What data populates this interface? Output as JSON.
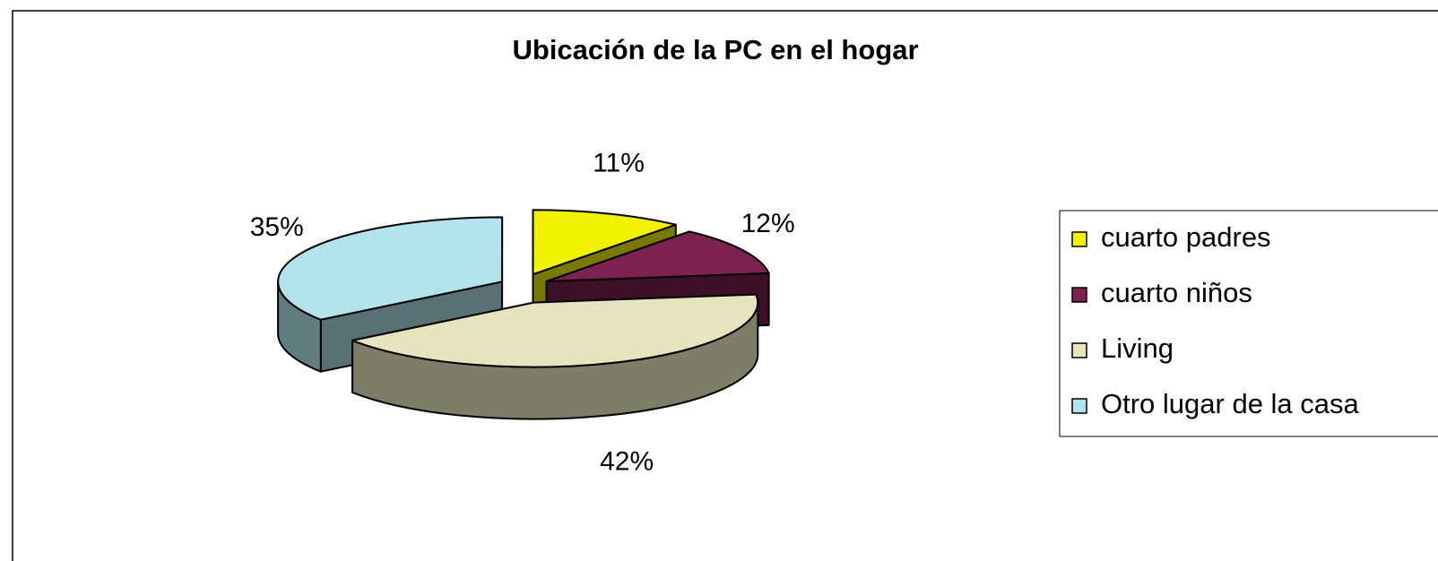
{
  "chart_data": {
    "type": "pie",
    "title": "Ubicación de la PC en el hogar",
    "categories": [
      "cuarto padres",
      "cuarto niños",
      "Living",
      "Otro lugar de la casa"
    ],
    "values": [
      11,
      12,
      42,
      35
    ],
    "value_labels": [
      "11%",
      "12%",
      "42%",
      "35%"
    ],
    "colors": [
      "#f2f200",
      "#7d2150",
      "#e6e3bd",
      "#b3e3ea"
    ],
    "legend": "right"
  }
}
